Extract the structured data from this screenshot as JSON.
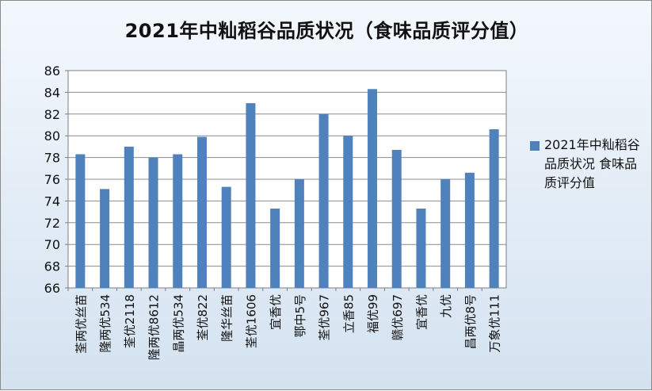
{
  "chart_data": {
    "type": "bar",
    "title": "2021年中籼稻谷品质状况（食味品质评分值）",
    "categories": [
      "荃两优丝苗",
      "隆两优534",
      "荃优2118",
      "隆两优8612",
      "晶两优534",
      "荃优822",
      "隆华丝苗",
      "荃优1606",
      "宜香优",
      "鄂中5号",
      "荃优967",
      "立香85",
      "福优99",
      "赣优697",
      "宜香优",
      "九优",
      "昌两优8号",
      "万象优111"
    ],
    "series": [
      {
        "name": "2021年中籼稻谷品质状况 食味品质评分值",
        "values": [
          78.3,
          75.1,
          79.0,
          78.0,
          78.3,
          79.9,
          75.3,
          83.0,
          73.3,
          76.0,
          82.0,
          80.0,
          84.3,
          78.7,
          73.3,
          76.0,
          76.6,
          80.6
        ]
      }
    ],
    "yticks": [
      "86",
      "84",
      "82",
      "80",
      "78",
      "76",
      "74",
      "72",
      "70",
      "68",
      "66"
    ],
    "ylim": [
      66,
      86
    ],
    "ystep": 2,
    "grid": true,
    "legend": "right",
    "color": "#4f81bd"
  }
}
